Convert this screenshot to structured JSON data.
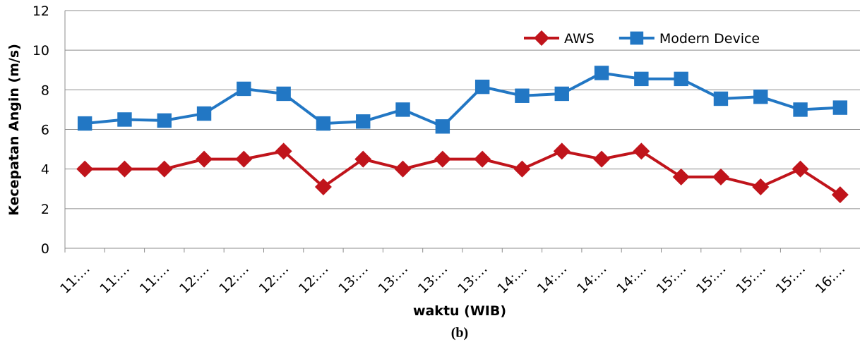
{
  "chart_data": {
    "type": "line",
    "caption": "(b)",
    "x_label": "waktu (WIB)",
    "y_label": "Kecepatan Angin (m/s)",
    "categories": [
      "11:…",
      "11:…",
      "11:…",
      "12:…",
      "12:…",
      "12:…",
      "12:…",
      "13:…",
      "13:…",
      "13:…",
      "13:…",
      "14:…",
      "14:…",
      "14:…",
      "14:…",
      "15:…",
      "15:…",
      "15:…",
      "15:…",
      "16:…"
    ],
    "series": [
      {
        "name": "AWS",
        "color": "#c0141b",
        "marker": "diamond",
        "values": [
          4,
          4,
          4,
          4.5,
          4.5,
          4.9,
          3.1,
          4.5,
          4,
          4.5,
          4.5,
          4,
          4.9,
          4.5,
          4.9,
          3.6,
          3.6,
          3.1,
          4,
          2.7
        ]
      },
      {
        "name": "Modern Device",
        "color": "#2277c4",
        "marker": "square",
        "values": [
          6.3,
          6.5,
          6.45,
          6.8,
          8.05,
          7.8,
          6.3,
          6.4,
          7,
          6.15,
          8.15,
          7.7,
          7.8,
          8.85,
          8.55,
          8.55,
          7.55,
          7.65,
          7,
          7.1
        ]
      }
    ],
    "ylim": [
      0,
      12
    ],
    "yticks": [
      0,
      2,
      4,
      6,
      8,
      10,
      12
    ],
    "grid": true,
    "legend": "top-right"
  }
}
